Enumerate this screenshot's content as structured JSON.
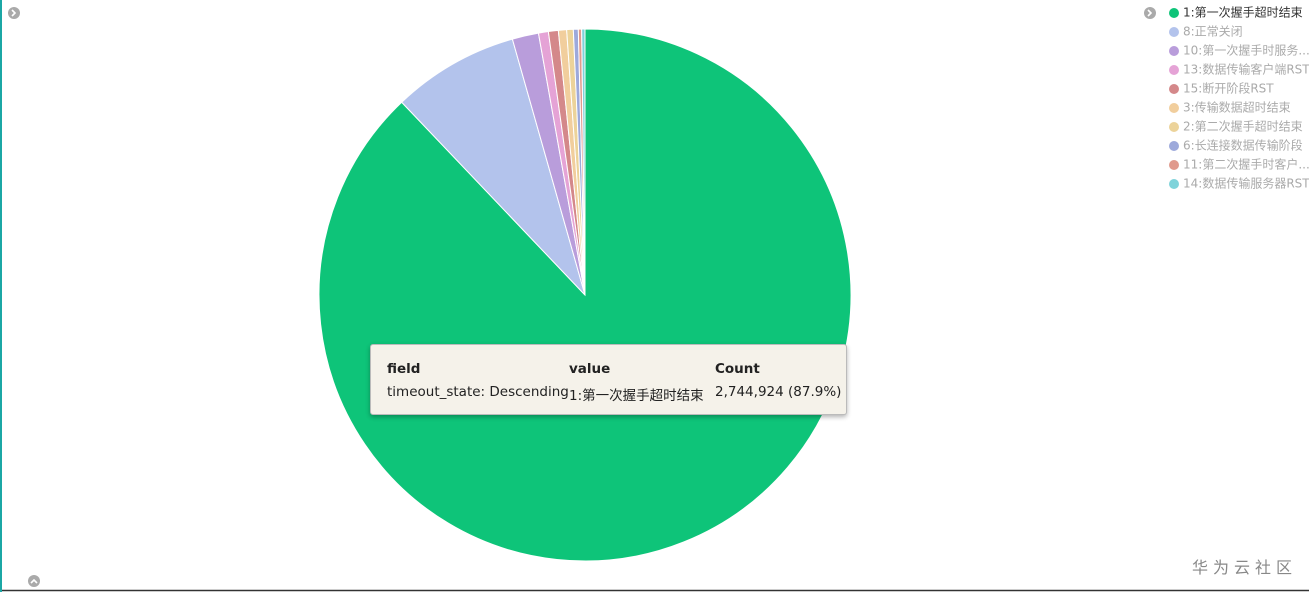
{
  "chart_data": {
    "type": "pie",
    "categories": [
      "1:第一次握手超时结束",
      "8:正常关闭",
      "10:第一次握手时服务...",
      "13:数据传输客户端RST",
      "15:断开阶段RST",
      "3:传输数据超时结束",
      "2:第二次握手超时结束",
      "6:长连接数据传输阶段",
      "11:第二次握手时客户...",
      "14:数据传输服务器RST"
    ],
    "values": [
      87.9,
      7.7,
      1.6,
      0.6,
      0.6,
      0.5,
      0.4,
      0.3,
      0.2,
      0.2
    ],
    "colors": [
      "#0ec479",
      "#b3c3ec",
      "#b99ddb",
      "#e5a3d6",
      "#d4888a",
      "#f1ce9d",
      "#ecd39a",
      "#9da9db",
      "#e09a8d",
      "#7fd3da"
    ],
    "legend": "top-right",
    "tooltip": {
      "headers": [
        "field",
        "value",
        "Count"
      ],
      "row": [
        "timeout_state: Descending",
        "1:第一次握手超时结束",
        "2,744,924 (87.9%)"
      ]
    }
  },
  "watermark": "华为云社区"
}
